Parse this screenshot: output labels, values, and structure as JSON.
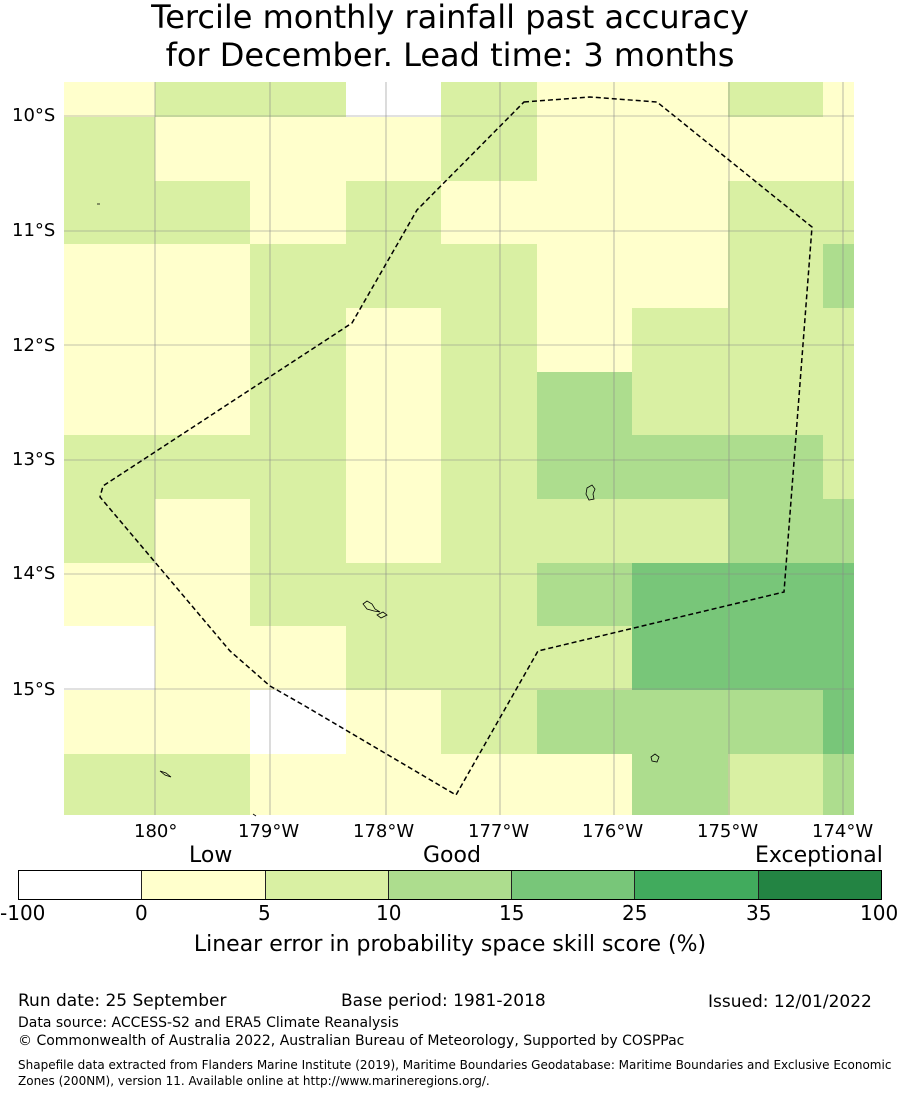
{
  "title_line1": "Tercile monthly rainfall past accuracy",
  "title_line2": "for December. Lead time: 3 months",
  "lat_labels": [
    "10°S",
    "11°S",
    "12°S",
    "13°S",
    "14°S",
    "15°S"
  ],
  "lon_labels": [
    "180°",
    "179°W",
    "178°W",
    "177°W",
    "176°W",
    "175°W",
    "174°W"
  ],
  "colorbar": {
    "categories": [
      "Low",
      "Good",
      "Exceptional"
    ],
    "ticks": [
      "-100",
      "0",
      "5",
      "10",
      "15",
      "25",
      "35",
      "100"
    ],
    "colors": [
      "#ffffff",
      "#ffffcc",
      "#d9f0a3",
      "#addd8e",
      "#78c679",
      "#41ab5d",
      "#238443"
    ],
    "label": "Linear error in probability space skill score (%)"
  },
  "grid_colors": [
    [
      1,
      2,
      2,
      0,
      2,
      1,
      1,
      2,
      1
    ],
    [
      2,
      1,
      1,
      1,
      2,
      1,
      1,
      1,
      1
    ],
    [
      2,
      2,
      1,
      2,
      1,
      1,
      1,
      2,
      2
    ],
    [
      1,
      1,
      2,
      2,
      2,
      1,
      1,
      2,
      3
    ],
    [
      1,
      1,
      2,
      1,
      2,
      1,
      2,
      2,
      2
    ],
    [
      1,
      1,
      2,
      1,
      2,
      3,
      2,
      2,
      2
    ],
    [
      2,
      2,
      2,
      1,
      2,
      3,
      3,
      3,
      2
    ],
    [
      2,
      1,
      2,
      1,
      2,
      2,
      2,
      3,
      3
    ],
    [
      1,
      1,
      2,
      2,
      2,
      3,
      4,
      4,
      4
    ],
    [
      0,
      1,
      1,
      2,
      2,
      2,
      4,
      4,
      4
    ],
    [
      1,
      1,
      0,
      1,
      2,
      3,
      3,
      3,
      4
    ],
    [
      2,
      2,
      1,
      1,
      1,
      1,
      3,
      2,
      3
    ]
  ],
  "run_date": "Run date: 25 September",
  "base_period": "Base period: 1981-2018",
  "issued": "Issued: 12/01/2022",
  "data_source": "Data source: ACCESS-S2 and ERA5 Climate Reanalysis",
  "copyright": "© Commonwealth of Australia 2022, Australian Bureau of Meteorology, Supported by COSPPac",
  "shapefile_line1": "Shapefile data extracted from Flanders Marine Institute (2019), Maritime Boundaries Geodatabase: Maritime Boundaries and Exclusive Economic",
  "shapefile_line2": "Zones (200NM), version 11. Available online at http://www.marineregions.org/."
}
